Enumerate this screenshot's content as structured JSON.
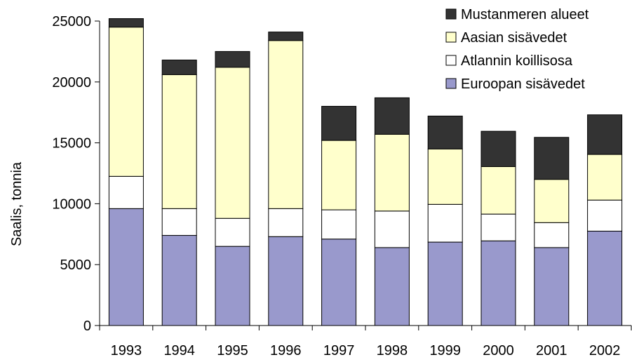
{
  "chart_data": {
    "type": "bar",
    "stacked": true,
    "categories": [
      "1993",
      "1994",
      "1995",
      "1996",
      "1997",
      "1998",
      "1999",
      "2000",
      "2001",
      "2002"
    ],
    "ylabel": "Saalis, tonnia",
    "xlabel": "",
    "ylim": [
      0,
      25000
    ],
    "yticks": [
      0,
      5000,
      10000,
      15000,
      20000,
      25000
    ],
    "grid": false,
    "legend_position": "top-right",
    "series": [
      {
        "name": "Euroopan sisävedet",
        "color": "#9999cc",
        "values": [
          9600,
          7400,
          6500,
          7300,
          7100,
          6400,
          6850,
          6950,
          6400,
          7750
        ]
      },
      {
        "name": "Atlannin koillisosa",
        "color": "#ffffff",
        "values": [
          2650,
          2200,
          2300,
          2300,
          2400,
          3000,
          3100,
          2200,
          2050,
          2550
        ]
      },
      {
        "name": "Aasian sisävedet",
        "color": "#ffffcc",
        "values": [
          12250,
          11000,
          12400,
          13800,
          5700,
          6300,
          4550,
          3900,
          3550,
          3750
        ]
      },
      {
        "name": "Mustanmeren alueet",
        "color": "#333333",
        "values": [
          700,
          1200,
          1300,
          700,
          2800,
          3000,
          2700,
          2900,
          3450,
          3250
        ]
      }
    ]
  }
}
